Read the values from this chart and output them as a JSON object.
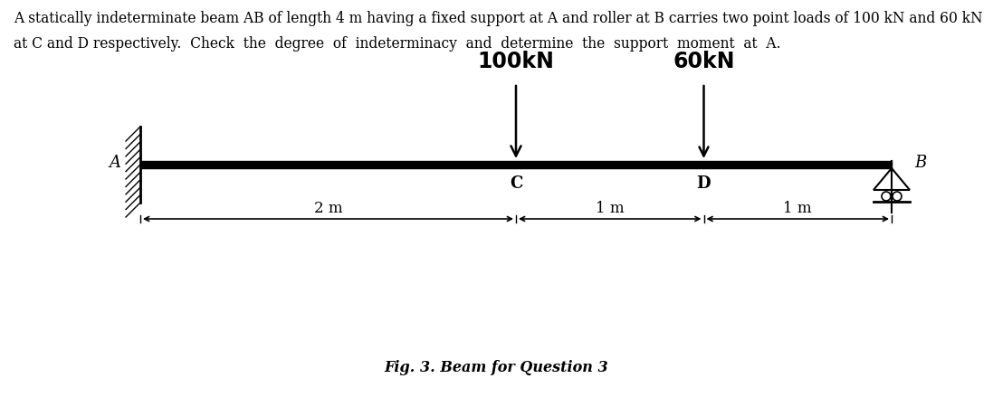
{
  "background_color": "#ffffff",
  "text_color": "#000000",
  "description_line1": "A statically indeterminate beam AB of length 4 m having a fixed support at A and roller at B carries two point loads of 100 kN and 60 kN",
  "description_line2": "at C and D respectively.  Check  the  degree  of  indeterminacy  and  determine  the  support  moment  at  A.",
  "fig_caption": "Fig. 3. Beam for Question 3",
  "load1_label": "100kN",
  "load2_label": "60kN",
  "label_A": "A",
  "label_B": "B",
  "label_C": "C",
  "label_D": "D",
  "dim1_label": "2 m",
  "dim2_label": "1 m",
  "dim3_label": "1 m"
}
